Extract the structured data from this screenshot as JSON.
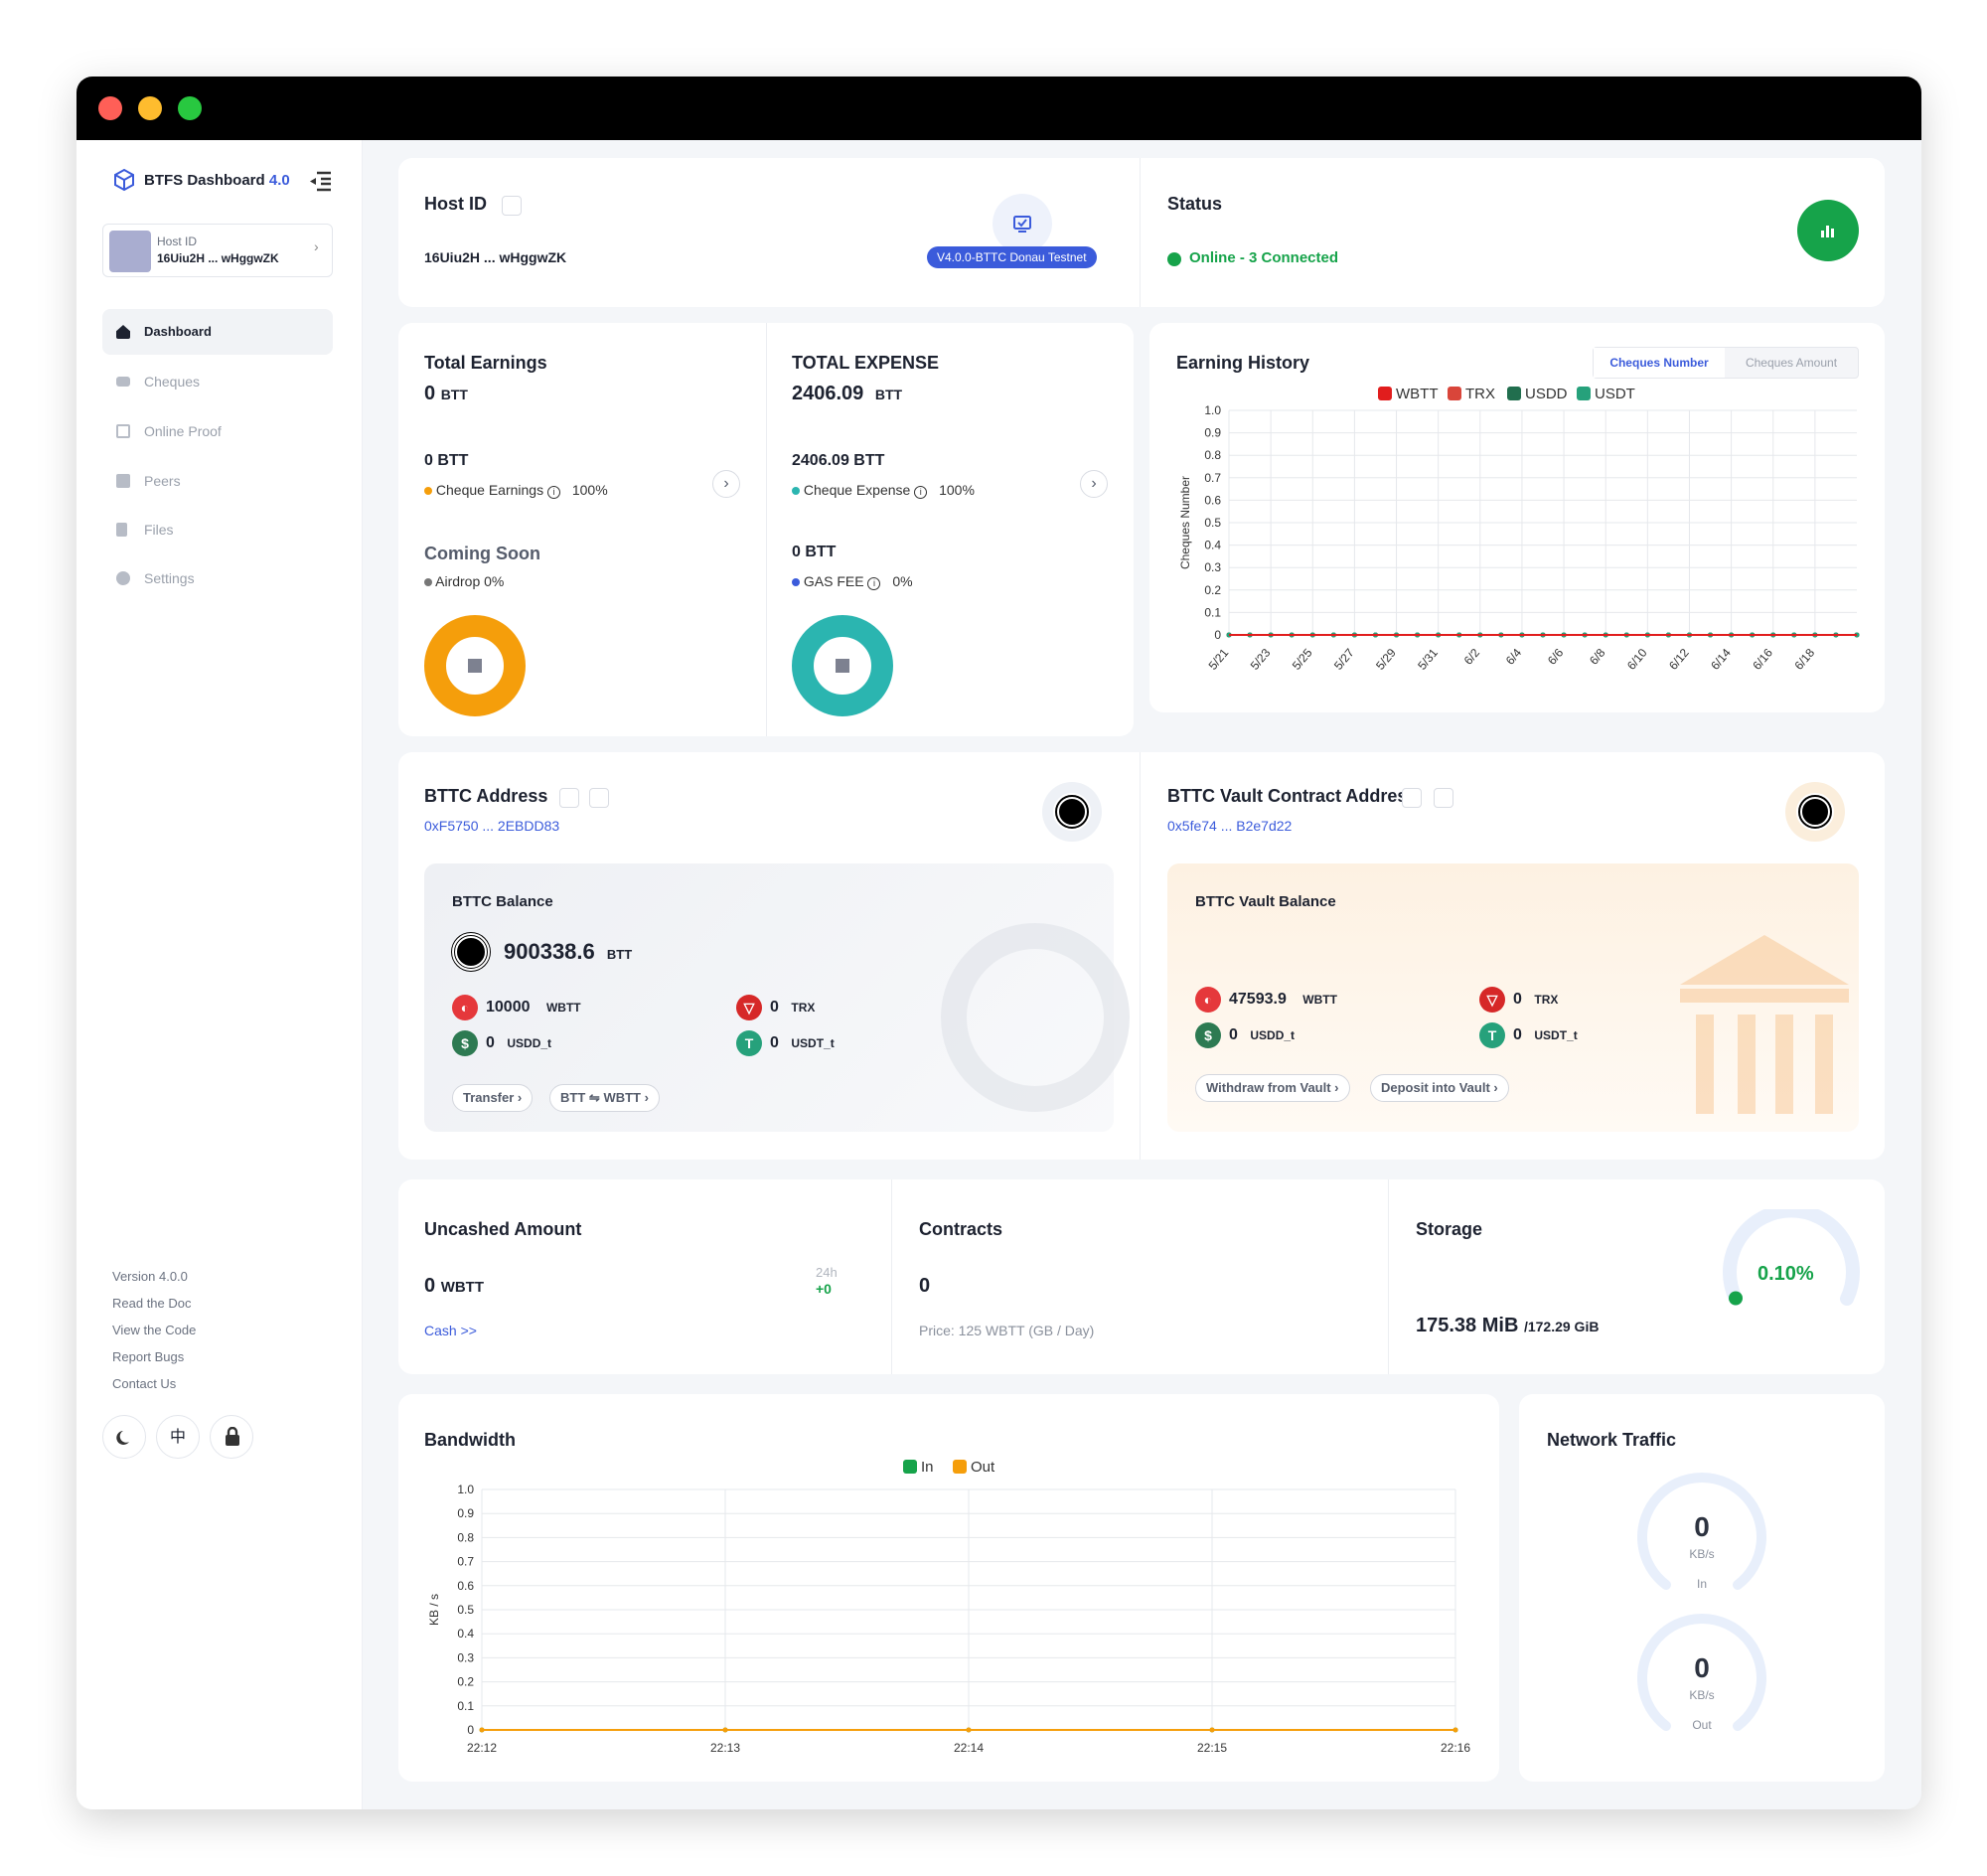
{
  "window": {
    "controls": [
      "close",
      "minimize",
      "maximize"
    ]
  },
  "sidebar": {
    "brand": "BTFS Dashboard",
    "brand_version": "4.0",
    "host_card": {
      "label": "Host ID",
      "value": "16Uiu2H ... wHggwZK"
    },
    "nav": [
      {
        "label": "Dashboard",
        "icon": "home-icon",
        "active": true
      },
      {
        "label": "Cheques",
        "icon": "cheque-icon"
      },
      {
        "label": "Online Proof",
        "icon": "monitor-icon"
      },
      {
        "label": "Peers",
        "icon": "server-icon"
      },
      {
        "label": "Files",
        "icon": "file-icon"
      },
      {
        "label": "Settings",
        "icon": "gear-icon"
      }
    ],
    "footer_links": [
      "Version 4.0.0",
      "Read the Doc",
      "View the Code",
      "Report Bugs",
      "Contact Us"
    ],
    "bottom_buttons": [
      "moon-icon",
      "中",
      "lock-icon"
    ]
  },
  "host": {
    "title": "Host ID",
    "value": "16Uiu2H ... wHggwZK",
    "version_badge": "V4.0.0-BTTC Donau Testnet"
  },
  "status": {
    "title": "Status",
    "value": "Online - 3 Connected"
  },
  "earnings": {
    "title": "Total Earnings",
    "value": "0",
    "unit": "BTT",
    "sub_value": "0 BTT",
    "sub_label": "Cheque Earnings",
    "sub_pct": "100%",
    "coming_title": "Coming Soon",
    "airdrop": "Airdrop 0%"
  },
  "expense": {
    "title": "TOTAL EXPENSE",
    "value": "2406.09",
    "unit": "BTT",
    "sub_value": "2406.09 BTT",
    "sub_label": "Cheque Expense",
    "sub_pct": "100%",
    "gas_value": "0 BTT",
    "gas_label": "GAS FEE",
    "gas_pct": "0%"
  },
  "earning_history": {
    "title": "Earning History",
    "tabs": [
      "Cheques Number",
      "Cheques Amount"
    ],
    "active_tab": 0
  },
  "bttc_address": {
    "title": "BTTC Address",
    "address": "0xF5750 ... 2EBDD83",
    "balance_title": "BTTC Balance",
    "balance": "900338.6",
    "balance_unit": "BTT",
    "wbtt": "10000",
    "wbtt_unit": "WBTT",
    "trx": "0",
    "trx_unit": "TRX",
    "usdd": "0",
    "usdd_unit": "USDD_t",
    "usdt": "0",
    "usdt_unit": "USDT_t",
    "btn_transfer": "Transfer",
    "btn_swap_from": "BTT",
    "btn_swap_to": "WBTT"
  },
  "vault": {
    "title": "BTTC Vault Contract Address",
    "address": "0x5fe74 ... B2e7d22",
    "balance_title": "BTTC Vault Balance",
    "wbtt": "47593.9",
    "wbtt_unit": "WBTT",
    "trx": "0",
    "trx_unit": "TRX",
    "usdd": "0",
    "usdd_unit": "USDD_t",
    "usdt": "0",
    "usdt_unit": "USDT_t",
    "btn_withdraw": "Withdraw from Vault",
    "btn_deposit": "Deposit into Vault"
  },
  "uncashed": {
    "title": "Uncashed Amount",
    "value": "0",
    "unit": "WBTT",
    "period": "24h",
    "delta": "+0",
    "cash_link": "Cash >>"
  },
  "contracts": {
    "title": "Contracts",
    "value": "0",
    "price": "Price: 125 WBTT (GB / Day)"
  },
  "storage": {
    "title": "Storage",
    "used": "175.38 MiB",
    "total": "/172.29 GiB",
    "percent_label": "0.10%",
    "percent": 0.001
  },
  "bandwidth": {
    "title": "Bandwidth"
  },
  "network": {
    "title": "Network Traffic",
    "in": {
      "value": "0",
      "unit": "KB/s",
      "label": "In"
    },
    "out": {
      "value": "0",
      "unit": "KB/s",
      "label": "Out"
    }
  },
  "colors": {
    "primary": "#3b5bdb",
    "green": "#16a34a",
    "orange": "#f59e0b",
    "teal": "#2bb5b0",
    "wbtt": "#e5383b",
    "trx": "#d62828",
    "usdd": "#2d7a52",
    "usdt": "#26a17b"
  },
  "chart_data": [
    {
      "type": "line",
      "title": "Earning History",
      "ylabel": "Cheques Number",
      "x": [
        "5/21",
        "5/22",
        "5/23",
        "5/24",
        "5/25",
        "5/26",
        "5/27",
        "5/28",
        "5/29",
        "5/30",
        "5/31",
        "6/1",
        "6/2",
        "6/3",
        "6/4",
        "6/5",
        "6/6",
        "6/7",
        "6/8",
        "6/9",
        "6/10",
        "6/11",
        "6/12",
        "6/13",
        "6/14",
        "6/15",
        "6/16",
        "6/17",
        "6/18",
        "6/19",
        "6/20"
      ],
      "x_tick_labels": [
        "5/21",
        "5/23",
        "5/25",
        "5/27",
        "5/29",
        "5/31",
        "6/2",
        "6/4",
        "6/6",
        "6/8",
        "6/10",
        "6/12",
        "6/14",
        "6/16",
        "6/18"
      ],
      "ylim": [
        0,
        1
      ],
      "yticks": [
        "0",
        "0.1",
        "0.2",
        "0.3",
        "0.4",
        "0.5",
        "0.6",
        "0.7",
        "0.8",
        "0.9",
        "1.0"
      ],
      "legend": "top-center",
      "series": [
        {
          "name": "WBTT",
          "color": "#e11d1d",
          "values": [
            0,
            0,
            0,
            0,
            0,
            0,
            0,
            0,
            0,
            0,
            0,
            0,
            0,
            0,
            0,
            0,
            0,
            0,
            0,
            0,
            0,
            0,
            0,
            0,
            0,
            0,
            0,
            0,
            0,
            0,
            0
          ]
        },
        {
          "name": "TRX",
          "color": "#d9453a",
          "values": [
            0,
            0,
            0,
            0,
            0,
            0,
            0,
            0,
            0,
            0,
            0,
            0,
            0,
            0,
            0,
            0,
            0,
            0,
            0,
            0,
            0,
            0,
            0,
            0,
            0,
            0,
            0,
            0,
            0,
            0,
            0
          ]
        },
        {
          "name": "USDD",
          "color": "#216e4e",
          "values": [
            0,
            0,
            0,
            0,
            0,
            0,
            0,
            0,
            0,
            0,
            0,
            0,
            0,
            0,
            0,
            0,
            0,
            0,
            0,
            0,
            0,
            0,
            0,
            0,
            0,
            0,
            0,
            0,
            0,
            0,
            0
          ]
        },
        {
          "name": "USDT",
          "color": "#26a17b",
          "values": [
            0,
            0,
            0,
            0,
            0,
            0,
            0,
            0,
            0,
            0,
            0,
            0,
            0,
            0,
            0,
            0,
            0,
            0,
            0,
            0,
            0,
            0,
            0,
            0,
            0,
            0,
            0,
            0,
            0,
            0,
            0
          ]
        }
      ]
    },
    {
      "type": "line",
      "title": "Bandwidth",
      "ylabel": "KB / s",
      "x": [
        "22:12",
        "22:13",
        "22:14",
        "22:15",
        "22:16"
      ],
      "ylim": [
        0,
        1
      ],
      "yticks": [
        "0",
        "0.1",
        "0.2",
        "0.3",
        "0.4",
        "0.5",
        "0.6",
        "0.7",
        "0.8",
        "0.9",
        "1.0"
      ],
      "legend": "top-center",
      "series": [
        {
          "name": "In",
          "color": "#16a34a",
          "values": [
            0,
            0,
            0,
            0,
            0
          ]
        },
        {
          "name": "Out",
          "color": "#f59e0b",
          "values": [
            0,
            0,
            0,
            0,
            0
          ]
        }
      ]
    }
  ]
}
